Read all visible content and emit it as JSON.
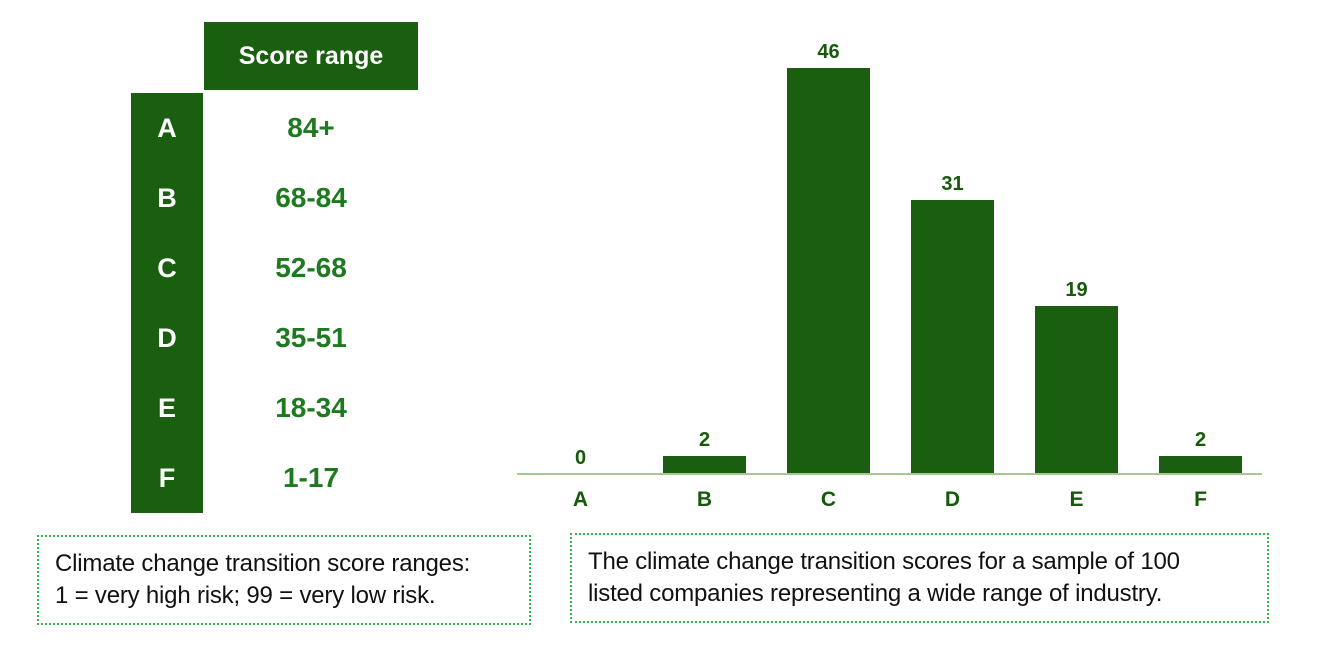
{
  "colors": {
    "dark_green": "#1a5e0f",
    "range_text_green": "#1e7a1f",
    "chart_label_green": "#17590c",
    "axis_line_green": "#a9c795",
    "caption_border_green": "#3cb44b",
    "caption_text": "#111111"
  },
  "score_table": {
    "header": "Score range",
    "rows": [
      {
        "grade": "A",
        "range": "84+"
      },
      {
        "grade": "B",
        "range": "68-84"
      },
      {
        "grade": "C",
        "range": "52-68"
      },
      {
        "grade": "D",
        "range": "35-51"
      },
      {
        "grade": "E",
        "range": "18-34"
      },
      {
        "grade": "F",
        "range": "1-17"
      }
    ]
  },
  "chart_data": {
    "type": "bar",
    "categories": [
      "A",
      "B",
      "C",
      "D",
      "E",
      "F"
    ],
    "values": [
      0,
      2,
      46,
      31,
      19,
      2
    ],
    "data_labels": [
      "0",
      "2",
      "46",
      "31",
      "19",
      "2"
    ],
    "title": "",
    "xlabel": "",
    "ylabel": "",
    "ylim": [
      0,
      48
    ],
    "grid": false,
    "legend": false,
    "bar_color": "#1a5e0f",
    "axis_line_color": "#a9c795",
    "data_labels_position": "above-bars"
  },
  "captions": {
    "left": {
      "line1": "Climate change transition score ranges:",
      "line2": "1 = very high risk; 99 = very low risk."
    },
    "right": {
      "line1": "The climate change transition scores for a sample of 100",
      "line2": "listed companies representing a wide range of industry."
    }
  }
}
